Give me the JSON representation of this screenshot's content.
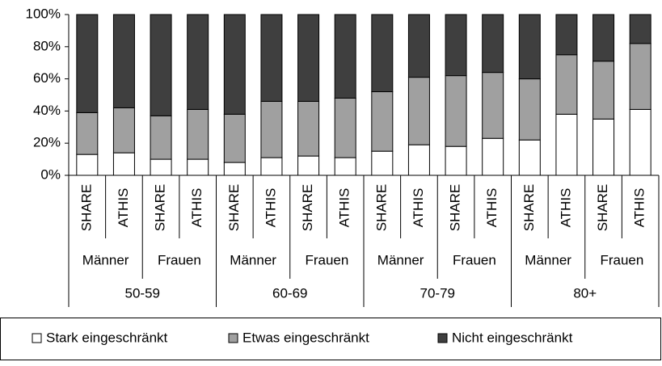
{
  "chart_data": {
    "type": "stacked_bar",
    "categories": [
      "SHARE",
      "ATHIS",
      "SHARE",
      "ATHIS",
      "SHARE",
      "ATHIS",
      "SHARE",
      "ATHIS",
      "SHARE",
      "ATHIS",
      "SHARE",
      "ATHIS",
      "SHARE",
      "ATHIS",
      "SHARE",
      "ATHIS"
    ],
    "sex_groups": [
      "Männer",
      "Frauen",
      "Männer",
      "Frauen",
      "Männer",
      "Frauen",
      "Männer",
      "Frauen"
    ],
    "age_groups": [
      "50-59",
      "60-69",
      "70-79",
      "80+"
    ],
    "series": [
      {
        "name": "Stark eingeschränkt",
        "color": "#ffffff",
        "values": [
          13,
          14,
          10,
          10,
          8,
          11,
          12,
          11,
          15,
          19,
          18,
          23,
          22,
          38,
          35,
          41
        ]
      },
      {
        "name": "Etwas eingeschränkt",
        "color": "#a0a0a0",
        "values": [
          26,
          28,
          27,
          31,
          30,
          35,
          34,
          37,
          37,
          42,
          44,
          41,
          38,
          37,
          36,
          41
        ]
      },
      {
        "name": "Nicht eingeschränkt",
        "color": "#3f3f3f",
        "values": [
          61,
          58,
          63,
          59,
          62,
          54,
          54,
          52,
          48,
          39,
          38,
          36,
          40,
          25,
          29,
          18
        ]
      }
    ],
    "ylim": [
      0,
      100
    ],
    "yticks": [
      {
        "value": 0,
        "label": "0%"
      },
      {
        "value": 20,
        "label": "20%"
      },
      {
        "value": 40,
        "label": "40%"
      },
      {
        "value": 60,
        "label": "60%"
      },
      {
        "value": 80,
        "label": "80%"
      },
      {
        "value": 100,
        "label": "100%"
      }
    ],
    "legend": "bottom"
  }
}
